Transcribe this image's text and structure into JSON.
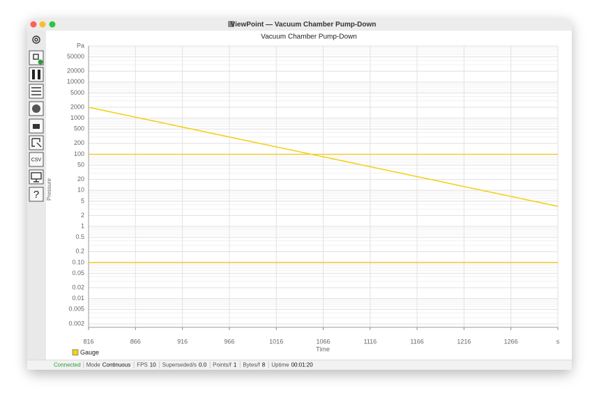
{
  "window": {
    "title": "ViewPoint — Vacuum Chamber Pump-Down"
  },
  "sidebar": {
    "csv": "CSV",
    "help": "?"
  },
  "chart_data": {
    "type": "line",
    "title": "Vacuum Chamber Pump-Down",
    "x_label": "Time",
    "y_label": "Pressure",
    "x": [
      816,
      1066,
      1316
    ],
    "series": [
      {
        "name": "Gauge",
        "color": "#f2d21b",
        "values": [
          2000,
          85,
          3.6
        ]
      }
    ],
    "thresholds": [
      100,
      0.1
    ],
    "threshold_color": "#f0c419",
    "xlim": [
      816,
      1316
    ],
    "xticks": [
      816,
      866,
      916,
      966,
      1016,
      1066,
      1116,
      1166,
      1216,
      1266,
      {
        "value": 1316,
        "label": "s"
      }
    ],
    "ylim": [
      0.0016,
      100000
    ],
    "y_log": true,
    "yticks": [
      {
        "value": 100000,
        "label": "Pa"
      },
      50000,
      20000,
      10000,
      5000,
      2000,
      1000,
      500,
      200,
      100,
      50,
      20,
      10,
      5,
      2,
      1,
      0.5,
      0.2,
      {
        "value": 0.1,
        "label": "0.10"
      },
      0.05,
      0.02,
      0.01,
      0.005,
      0.002
    ],
    "grid": true,
    "legend": "bottom-left"
  },
  "status_bar": {
    "connection": "Connected",
    "items": [
      {
        "label": "Mode",
        "value": "Continuous"
      },
      {
        "label": "FPS",
        "value": "10"
      },
      {
        "label": "Superseded/s",
        "value": "0.0"
      },
      {
        "label": "Points/f",
        "value": "1"
      },
      {
        "label": "Bytes/f",
        "value": "8"
      },
      {
        "label": "Uptime",
        "value": "00:01:20"
      }
    ]
  }
}
